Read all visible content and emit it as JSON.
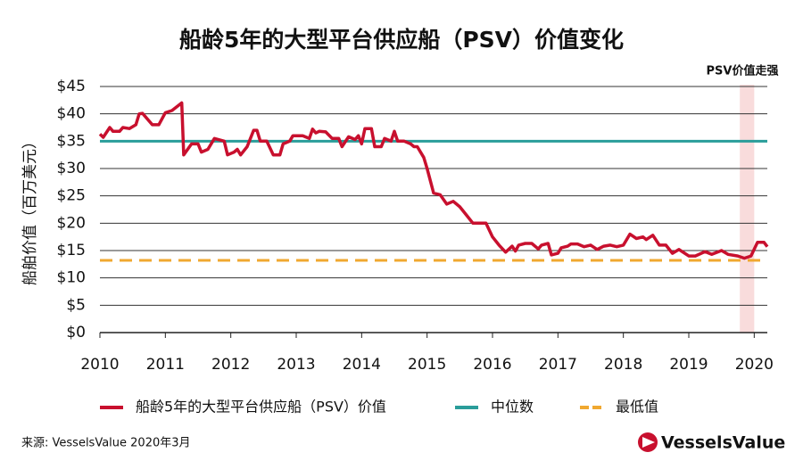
{
  "chart_data": {
    "type": "line",
    "title": "船龄5年的大型平台供应船（PSV）价值变化",
    "y_label": "船舶价值（百万美元）",
    "xlim": [
      2010,
      2020.2
    ],
    "xticks": [
      2010,
      2011,
      2012,
      2013,
      2014,
      2015,
      2016,
      2017,
      2018,
      2019,
      2020
    ],
    "ylim": [
      0,
      45
    ],
    "yticks": [
      {
        "value": 0,
        "label": "$0"
      },
      {
        "value": 5,
        "label": "$5"
      },
      {
        "value": 10,
        "label": "$10"
      },
      {
        "value": 15,
        "label": "$15"
      },
      {
        "value": 20,
        "label": "$20"
      },
      {
        "value": 25,
        "label": "$25"
      },
      {
        "value": 30,
        "label": "$30"
      },
      {
        "value": 35,
        "label": "$35"
      },
      {
        "value": 40,
        "label": "$40"
      },
      {
        "value": 45,
        "label": "$45"
      }
    ],
    "grid": true,
    "series": [
      {
        "name": "船龄5年的大型平台供应船（PSV）价值",
        "color": "#c8102e",
        "x": [
          2010.0,
          2010.05,
          2010.15,
          2010.2,
          2010.3,
          2010.35,
          2010.45,
          2010.55,
          2010.6,
          2010.65,
          2010.8,
          2010.9,
          2011.0,
          2011.1,
          2011.25,
          2011.28,
          2011.4,
          2011.5,
          2011.55,
          2011.65,
          2011.75,
          2011.9,
          2011.95,
          2012.05,
          2012.1,
          2012.15,
          2012.25,
          2012.35,
          2012.4,
          2012.45,
          2012.55,
          2012.65,
          2012.75,
          2012.8,
          2012.9,
          2012.95,
          2013.1,
          2013.2,
          2013.25,
          2013.3,
          2013.35,
          2013.45,
          2013.55,
          2013.65,
          2013.7,
          2013.8,
          2013.9,
          2013.95,
          2014.0,
          2014.05,
          2014.15,
          2014.2,
          2014.3,
          2014.35,
          2014.45,
          2014.5,
          2014.55,
          2014.65,
          2014.75,
          2014.8,
          2014.85,
          2014.95,
          2015.0,
          2015.1,
          2015.2,
          2015.3,
          2015.4,
          2015.5,
          2015.6,
          2015.7,
          2015.9,
          2016.0,
          2016.1,
          2016.2,
          2016.3,
          2016.35,
          2016.4,
          2016.5,
          2016.6,
          2016.7,
          2016.75,
          2016.85,
          2016.9,
          2017.0,
          2017.05,
          2017.15,
          2017.2,
          2017.3,
          2017.4,
          2017.5,
          2017.6,
          2017.7,
          2017.8,
          2017.9,
          2018.0,
          2018.1,
          2018.2,
          2018.3,
          2018.35,
          2018.45,
          2018.55,
          2018.65,
          2018.75,
          2018.85,
          2019.0,
          2019.1,
          2019.25,
          2019.35,
          2019.5,
          2019.6,
          2019.75,
          2019.85,
          2019.95,
          2020.05,
          2020.15,
          2020.2
        ],
        "values": [
          36.3,
          35.7,
          37.5,
          36.8,
          36.8,
          37.5,
          37.3,
          38,
          40,
          40.1,
          38,
          38,
          40.2,
          40.6,
          42,
          32.5,
          34.5,
          34.5,
          33,
          33.5,
          35.5,
          35,
          32.5,
          33,
          33.5,
          32.5,
          34,
          37,
          37,
          35,
          35,
          32.5,
          32.5,
          34.5,
          35,
          36,
          36,
          35.5,
          37.2,
          36.5,
          36.8,
          36.7,
          35.5,
          35.5,
          34,
          35.8,
          35.3,
          36,
          34.5,
          37.3,
          37.3,
          34,
          34,
          35.5,
          35,
          36.8,
          35,
          35,
          34.5,
          34,
          34,
          32,
          30,
          25.5,
          25.2,
          23.5,
          24,
          23,
          21.5,
          20,
          20,
          17.5,
          16,
          14.7,
          15.8,
          14.9,
          16,
          16.3,
          16.3,
          15.3,
          16,
          16.3,
          14.2,
          14.5,
          15.5,
          15.8,
          16.2,
          16.2,
          15.7,
          16,
          15.2,
          15.8,
          16,
          15.7,
          16,
          18,
          17.2,
          17.5,
          17,
          17.8,
          16,
          16,
          14.5,
          15.2,
          14,
          14,
          14.8,
          14.3,
          15,
          14.3,
          14,
          13.6,
          14,
          16.5,
          16.5,
          15.7
        ]
      }
    ],
    "reference_lines": [
      {
        "name": "中位数",
        "value": 35,
        "color": "#2a9d9a",
        "dashed": false
      },
      {
        "name": "最低值",
        "value": 13.2,
        "color": "#f0a830",
        "dashed": true
      }
    ],
    "highlight": {
      "label": "PSV价值走强",
      "x": [
        2019.78,
        2020.0
      ],
      "color": "#f9dcdc"
    },
    "source": "来源: VesselsValue 2020年3月",
    "logo": "VesselsValue"
  }
}
